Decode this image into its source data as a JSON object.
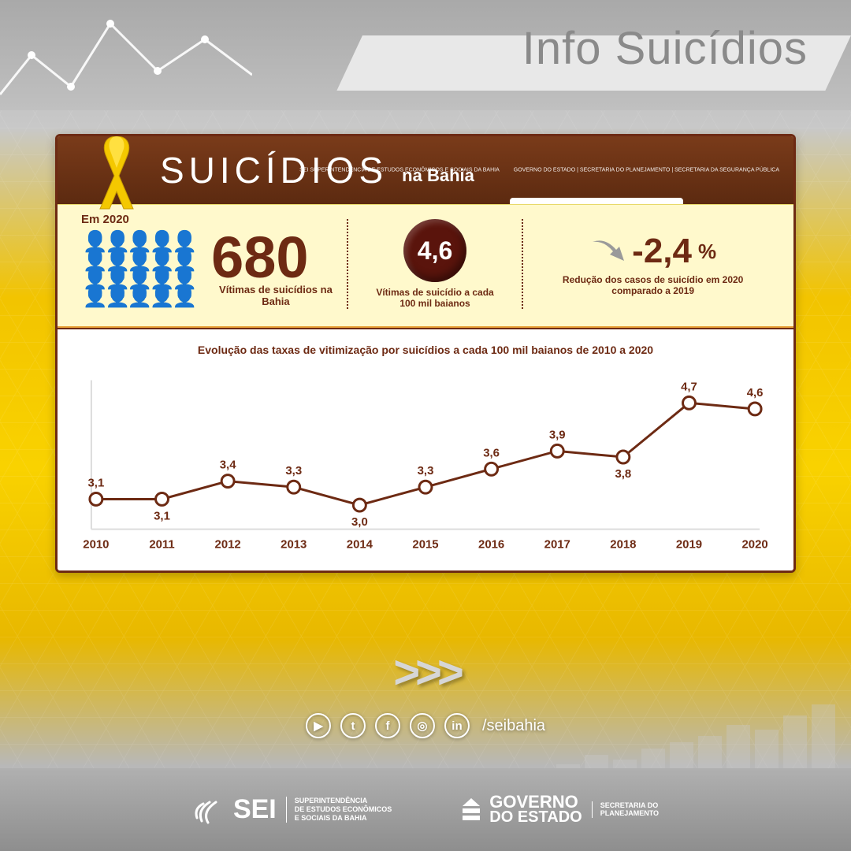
{
  "page": {
    "title": "Info Suicídios",
    "background_top": "#b8b8b8",
    "background_yellow": "#f9d200"
  },
  "card": {
    "border_color": "#6d2a13",
    "background": "#fffde6",
    "header": {
      "title": "SUICÍDIOS",
      "subtitle": "na Bahia",
      "bg_from": "#7a3b1a",
      "bg_to": "#5c2a10",
      "ribbon_color": "#f4c800",
      "logos": {
        "sei": "SEI  SUPERINTENDÊNCIA DE ESTUDOS ECONÔMICOS E SOCIAIS DA BAHIA",
        "gov": "GOVERNO DO ESTADO | SECRETARIA DO PLANEJAMENTO | SECRETARIA DA SEGURANÇA PÚBLICA"
      }
    }
  },
  "stats": {
    "period_label": "Em 2020",
    "background": "#fff9cc",
    "text_color": "#6d2a13",
    "stat1": {
      "value": "680",
      "caption": "Vítimas de suicídios na Bahia",
      "icon_rows": 2,
      "icon_cols": 10,
      "icon_color": "#5c1e0d"
    },
    "stat2": {
      "value": "4,6",
      "caption": "Vítimas de suicídio a cada 100 mil baianos",
      "bubble_color": "#5a140c"
    },
    "stat3": {
      "value": "-2,4",
      "unit": "%",
      "caption": "Redução dos casos de suicídio em 2020 comparado a 2019",
      "arrow_color": "#8f8f8f"
    }
  },
  "chart": {
    "type": "line",
    "title": "Evolução das taxas de vitimização por suicídios a cada 100 mil baianos de 2010 a 2020",
    "x_labels": [
      "2010",
      "2011",
      "2012",
      "2013",
      "2014",
      "2015",
      "2016",
      "2017",
      "2018",
      "2019",
      "2020"
    ],
    "values": [
      3.1,
      3.1,
      3.4,
      3.3,
      3.0,
      3.3,
      3.6,
      3.9,
      3.8,
      4.7,
      4.6
    ],
    "value_strings": [
      "3,1",
      "3,1",
      "3,4",
      "3,3",
      "3,0",
      "3,3",
      "3,6",
      "3,9",
      "3,8",
      "4,7",
      "4,6"
    ],
    "ylim": [
      2.6,
      5.0
    ],
    "line_color": "#6d2a13",
    "line_width": 3,
    "marker_fill": "#ffffff",
    "marker_stroke": "#6d2a13",
    "marker_radius": 8,
    "marker_stroke_width": 3,
    "axis_color": "#dcdcdc",
    "font_color": "#6d2a13",
    "font_weight": "bold",
    "label_fontsize": 15,
    "xaxis_fontsize": 15,
    "background": "#ffffff",
    "label_positions": [
      "above",
      "below",
      "above",
      "above",
      "below",
      "above",
      "above",
      "above",
      "below",
      "above",
      "above"
    ]
  },
  "chevrons": {
    "text": ">>>"
  },
  "social": {
    "handle": "/seibahia",
    "icons": [
      "▶",
      "t",
      "f",
      "◎",
      "in"
    ]
  },
  "footer": {
    "background": "#8e8e8e",
    "sei": {
      "main": "SEI",
      "sub": "SUPERINTENDÊNCIA\nDE ESTUDOS ECONÔMICOS\nE SOCIAIS DA BAHIA"
    },
    "gov": {
      "line1": "GOVERNO",
      "line2": "DO ESTADO",
      "sub": "SECRETARIA DO\nPLANEJAMENTO"
    }
  },
  "decor_bars": [
    20,
    32,
    26,
    40,
    48,
    56,
    70,
    64,
    82,
    96
  ]
}
